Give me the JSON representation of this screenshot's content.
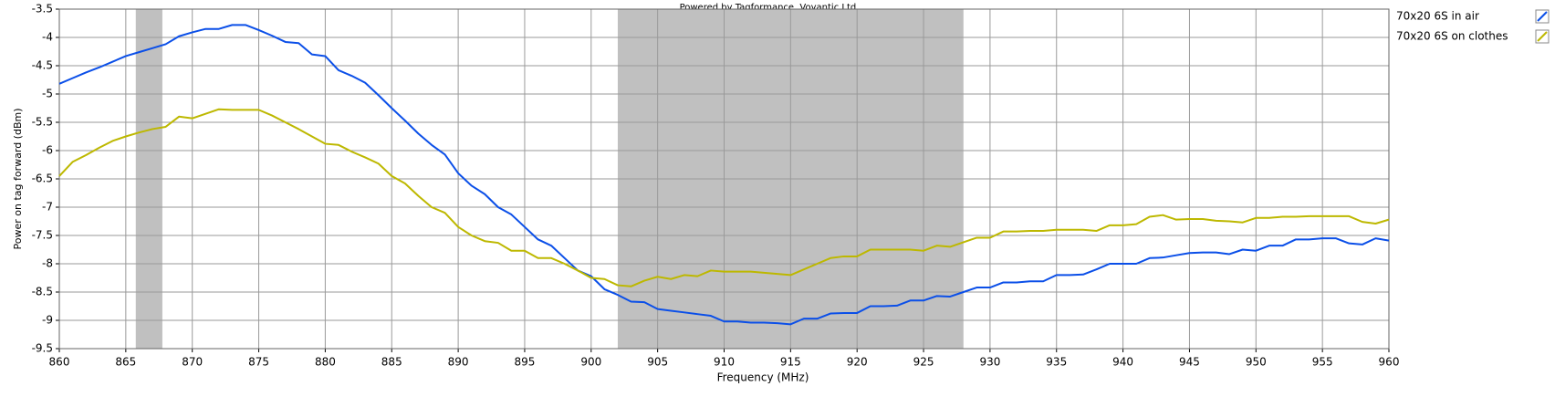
{
  "chart_data": {
    "type": "line",
    "title": "Powered by Tagformance, Voyantic Ltd.",
    "x_label": "Frequency (MHz)",
    "y_label": "Power on tag forward (dBm)",
    "x": [
      860,
      861,
      862,
      863,
      864,
      865,
      866,
      867,
      868,
      869,
      870,
      871,
      872,
      873,
      874,
      875,
      876,
      877,
      878,
      879,
      880,
      881,
      882,
      883,
      884,
      885,
      886,
      887,
      888,
      889,
      890,
      891,
      892,
      893,
      894,
      895,
      896,
      897,
      898,
      899,
      900,
      901,
      902,
      903,
      904,
      905,
      906,
      907,
      908,
      909,
      910,
      911,
      912,
      913,
      914,
      915,
      916,
      917,
      918,
      919,
      920,
      921,
      922,
      923,
      924,
      925,
      926,
      927,
      928,
      929,
      930,
      931,
      932,
      933,
      934,
      935,
      936,
      937,
      938,
      939,
      940,
      941,
      942,
      943,
      944,
      945,
      946,
      947,
      948,
      949,
      950,
      951,
      952,
      953,
      954,
      955,
      956,
      957,
      958,
      959,
      960
    ],
    "series": [
      {
        "name": "70x20 6S in air",
        "color": "#0b4fe8",
        "values": [
          -4.82,
          -4.72,
          -4.62,
          -4.53,
          -4.43,
          -4.33,
          -4.26,
          -4.19,
          -4.12,
          -3.98,
          -3.91,
          -3.85,
          -3.85,
          -3.78,
          -3.78,
          -3.87,
          -3.97,
          -4.08,
          -4.1,
          -4.3,
          -4.33,
          -4.58,
          -4.68,
          -4.8,
          -5.02,
          -5.25,
          -5.47,
          -5.7,
          -5.9,
          -6.07,
          -6.4,
          -6.62,
          -6.77,
          -7.0,
          -7.13,
          -7.35,
          -7.57,
          -7.68,
          -7.9,
          -8.12,
          -8.22,
          -8.45,
          -8.55,
          -8.67,
          -8.68,
          -8.8,
          -8.83,
          -8.86,
          -8.89,
          -8.92,
          -9.02,
          -9.02,
          -9.04,
          -9.04,
          -9.05,
          -9.07,
          -8.97,
          -8.97,
          -8.88,
          -8.87,
          -8.87,
          -8.75,
          -8.75,
          -8.74,
          -8.65,
          -8.65,
          -8.57,
          -8.58,
          -8.5,
          -8.42,
          -8.42,
          -8.33,
          -8.33,
          -8.31,
          -8.31,
          -8.2,
          -8.2,
          -8.19,
          -8.1,
          -8.0,
          -8.0,
          -8.0,
          -7.9,
          -7.89,
          -7.85,
          -7.81,
          -7.8,
          -7.8,
          -7.83,
          -7.75,
          -7.77,
          -7.68,
          -7.68,
          -7.57,
          -7.57,
          -7.55,
          -7.55,
          -7.64,
          -7.66,
          -7.55,
          -7.59
        ]
      },
      {
        "name": "70x20 6S on clothes",
        "color": "#bdb800",
        "values": [
          -6.45,
          -6.2,
          -6.08,
          -5.95,
          -5.83,
          -5.75,
          -5.68,
          -5.62,
          -5.58,
          -5.4,
          -5.43,
          -5.35,
          -5.27,
          -5.28,
          -5.28,
          -5.28,
          -5.38,
          -5.5,
          -5.62,
          -5.75,
          -5.88,
          -5.9,
          -6.02,
          -6.12,
          -6.23,
          -6.45,
          -6.58,
          -6.8,
          -7.0,
          -7.1,
          -7.35,
          -7.5,
          -7.6,
          -7.63,
          -7.77,
          -7.77,
          -7.9,
          -7.9,
          -8.0,
          -8.12,
          -8.25,
          -8.27,
          -8.38,
          -8.4,
          -8.3,
          -8.23,
          -8.27,
          -8.2,
          -8.22,
          -8.12,
          -8.14,
          -8.14,
          -8.14,
          -8.16,
          -8.18,
          -8.2,
          -8.1,
          -8.0,
          -7.9,
          -7.87,
          -7.87,
          -7.75,
          -7.75,
          -7.75,
          -7.75,
          -7.77,
          -7.68,
          -7.7,
          -7.62,
          -7.54,
          -7.54,
          -7.43,
          -7.43,
          -7.42,
          -7.42,
          -7.4,
          -7.4,
          -7.4,
          -7.42,
          -7.32,
          -7.32,
          -7.3,
          -7.17,
          -7.14,
          -7.22,
          -7.21,
          -7.21,
          -7.24,
          -7.25,
          -7.27,
          -7.19,
          -7.19,
          -7.17,
          -7.17,
          -7.16,
          -7.16,
          -7.16,
          -7.16,
          -7.26,
          -7.29,
          -7.22
        ]
      }
    ],
    "shaded_ranges": [
      [
        865.75,
        867.75
      ],
      [
        902,
        928
      ]
    ],
    "shade_color": "#c0c0c0",
    "xlim": [
      860,
      960
    ],
    "xticks": [
      860,
      865,
      870,
      875,
      880,
      885,
      890,
      895,
      900,
      905,
      910,
      915,
      920,
      925,
      930,
      935,
      940,
      945,
      950,
      955,
      960
    ],
    "ylim": [
      -9.5,
      -3.5
    ],
    "yticks": [
      -3.5,
      -4,
      -4.5,
      -5,
      -5.5,
      -6,
      -6.5,
      -7,
      -7.5,
      -8,
      -8.5,
      -9,
      -9.5
    ],
    "grid": true,
    "legend": "right"
  }
}
